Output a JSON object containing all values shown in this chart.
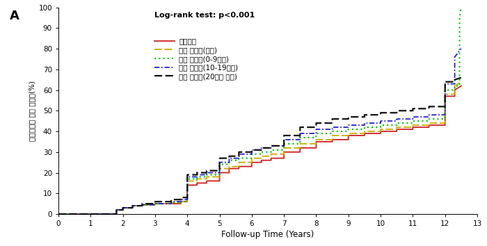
{
  "title_annotation": "Log-rank test: p<0.001",
  "xlabel": "Follow-up Time (Years)",
  "ylabel": "대사증후군 누적 발병률(%)",
  "panel_label": "A",
  "xlim": [
    0,
    13
  ],
  "ylim": [
    0,
    100
  ],
  "xticks": [
    0,
    1,
    2,
    3,
    4,
    5,
    6,
    7,
    8,
    9,
    10,
    11,
    12,
    13
  ],
  "yticks": [
    0,
    10,
    20,
    30,
    40,
    50,
    60,
    70,
    80,
    90,
    100
  ],
  "background_color": "#ffffff",
  "legend_text": [
    "비흡연자",
    "과거 흡연자(금연)",
    "현재 흡연자(0-9개비)",
    "현재 흡연자(10-19개비)",
    "현재 흡연자(20개비 이상)"
  ],
  "series": [
    {
      "label_idx": 0,
      "color": "#cc2222",
      "linestyle": "solid",
      "linewidth": 1.3,
      "x": [
        0,
        0,
        1.8,
        1.8,
        2.0,
        2.0,
        2.3,
        2.3,
        2.6,
        2.6,
        3.0,
        3.0,
        3.5,
        3.5,
        3.8,
        3.8,
        4.0,
        4.0,
        4.3,
        4.3,
        4.6,
        4.6,
        5.0,
        5.0,
        5.3,
        5.3,
        5.6,
        5.6,
        6.0,
        6.0,
        6.3,
        6.3,
        6.6,
        6.6,
        7.0,
        7.0,
        7.5,
        7.5,
        8.0,
        8.0,
        8.5,
        8.5,
        9.0,
        9.0,
        9.5,
        9.5,
        10.0,
        10.0,
        10.5,
        10.5,
        11.0,
        11.0,
        11.5,
        11.5,
        12.0,
        12.0,
        12.3,
        12.3,
        12.5
      ],
      "y": [
        0,
        0,
        0,
        2,
        2,
        3,
        3,
        4,
        4,
        4.5,
        4.5,
        5,
        5,
        5,
        5,
        6,
        6,
        14,
        14,
        15,
        15,
        16,
        16,
        20,
        20,
        22,
        22,
        23,
        23,
        25,
        25,
        26,
        26,
        27,
        27,
        30,
        30,
        32,
        32,
        35,
        35,
        36,
        36,
        38,
        38,
        39,
        39,
        40,
        40,
        41,
        41,
        42,
        42,
        43,
        43,
        57,
        57,
        60,
        62
      ]
    },
    {
      "label_idx": 1,
      "color": "#ccaa00",
      "linestyle": "dashed",
      "linewidth": 1.3,
      "dashes": [
        6,
        2
      ],
      "x": [
        0,
        0,
        1.8,
        1.8,
        2.0,
        2.0,
        2.3,
        2.3,
        2.6,
        2.6,
        3.0,
        3.0,
        3.5,
        3.5,
        3.8,
        3.8,
        4.0,
        4.0,
        4.3,
        4.3,
        4.6,
        4.6,
        5.0,
        5.0,
        5.3,
        5.3,
        5.6,
        5.6,
        6.0,
        6.0,
        6.3,
        6.3,
        6.6,
        6.6,
        7.0,
        7.0,
        7.5,
        7.5,
        8.0,
        8.0,
        8.5,
        8.5,
        9.0,
        9.0,
        9.5,
        9.5,
        10.0,
        10.0,
        10.5,
        10.5,
        11.0,
        11.0,
        11.5,
        11.5,
        12.0,
        12.0,
        12.3,
        12.3,
        12.5
      ],
      "y": [
        0,
        0,
        0,
        2,
        2,
        3,
        3,
        4,
        4,
        4.5,
        4.5,
        5,
        5,
        5.5,
        5.5,
        6,
        6,
        16,
        16,
        17,
        17,
        18,
        18,
        22,
        22,
        23,
        23,
        25,
        25,
        27,
        27,
        28,
        28,
        29,
        29,
        32,
        32,
        34,
        34,
        36,
        36,
        38,
        38,
        39,
        39,
        40,
        40,
        41,
        41,
        42,
        42,
        43,
        43,
        44,
        44,
        58,
        58,
        62,
        64
      ]
    },
    {
      "label_idx": 2,
      "color": "#00bb00",
      "linestyle": "dotted",
      "linewidth": 1.5,
      "dashes": [
        1,
        2
      ],
      "x": [
        0,
        0,
        1.8,
        1.8,
        2.0,
        2.0,
        2.3,
        2.3,
        2.6,
        2.6,
        3.0,
        3.0,
        3.5,
        3.5,
        3.8,
        3.8,
        4.0,
        4.0,
        4.3,
        4.3,
        4.6,
        4.6,
        5.0,
        5.0,
        5.3,
        5.3,
        5.6,
        5.6,
        6.0,
        6.0,
        6.3,
        6.3,
        6.6,
        6.6,
        7.0,
        7.0,
        7.5,
        7.5,
        8.0,
        8.0,
        8.5,
        8.5,
        9.0,
        9.0,
        9.5,
        9.5,
        10.0,
        10.0,
        10.5,
        10.5,
        11.0,
        11.0,
        11.5,
        11.5,
        12.0,
        12.0,
        12.3,
        12.3,
        12.45,
        12.45,
        12.5
      ],
      "y": [
        0,
        0,
        0,
        2,
        2,
        3,
        3,
        4,
        4,
        4.5,
        4.5,
        5,
        5,
        5.5,
        5.5,
        6,
        6,
        17,
        17,
        18,
        18,
        19,
        19,
        24,
        24,
        26,
        26,
        27,
        27,
        29,
        29,
        30,
        30,
        31,
        31,
        34,
        34,
        37,
        37,
        39,
        39,
        40,
        40,
        41,
        41,
        42,
        42,
        43,
        43,
        44,
        44,
        45,
        45,
        46,
        46,
        60,
        60,
        62,
        62,
        95,
        100
      ]
    },
    {
      "label_idx": 3,
      "color": "#2222cc",
      "linestyle": "dashdot",
      "linewidth": 1.3,
      "dashes": [
        4,
        1.5,
        1,
        1.5
      ],
      "x": [
        0,
        0,
        1.8,
        1.8,
        2.0,
        2.0,
        2.3,
        2.3,
        2.6,
        2.6,
        3.0,
        3.0,
        3.5,
        3.5,
        3.8,
        3.8,
        4.0,
        4.0,
        4.3,
        4.3,
        4.6,
        4.6,
        5.0,
        5.0,
        5.3,
        5.3,
        5.6,
        5.6,
        6.0,
        6.0,
        6.3,
        6.3,
        6.6,
        6.6,
        7.0,
        7.0,
        7.5,
        7.5,
        8.0,
        8.0,
        8.5,
        8.5,
        9.0,
        9.0,
        9.5,
        9.5,
        10.0,
        10.0,
        10.5,
        10.5,
        11.0,
        11.0,
        11.5,
        11.5,
        12.0,
        12.0,
        12.3,
        12.3,
        12.5
      ],
      "y": [
        0,
        0,
        0,
        2,
        2,
        3,
        3,
        4,
        4,
        4.5,
        4.5,
        5,
        5,
        6,
        6,
        7,
        7,
        18,
        18,
        19,
        19,
        20,
        20,
        25,
        25,
        27,
        27,
        29,
        29,
        31,
        31,
        32,
        32,
        33,
        33,
        36,
        36,
        39,
        39,
        41,
        41,
        42,
        42,
        43,
        43,
        44,
        44,
        45,
        45,
        46,
        46,
        47,
        47,
        48,
        48,
        63,
        63,
        76,
        80
      ]
    },
    {
      "label_idx": 4,
      "color": "#111111",
      "linestyle": "dashed",
      "linewidth": 1.6,
      "dashes": [
        5,
        2
      ],
      "x": [
        0,
        0,
        1.8,
        1.8,
        2.0,
        2.0,
        2.3,
        2.3,
        2.6,
        2.6,
        3.0,
        3.0,
        3.5,
        3.5,
        3.8,
        3.8,
        4.0,
        4.0,
        4.3,
        4.3,
        4.6,
        4.6,
        5.0,
        5.0,
        5.3,
        5.3,
        5.6,
        5.6,
        6.0,
        6.0,
        6.3,
        6.3,
        6.6,
        6.6,
        7.0,
        7.0,
        7.5,
        7.5,
        8.0,
        8.0,
        8.5,
        8.5,
        9.0,
        9.0,
        9.5,
        9.5,
        10.0,
        10.0,
        10.5,
        10.5,
        11.0,
        11.0,
        11.5,
        11.5,
        12.0,
        12.0,
        12.3,
        12.3,
        12.5
      ],
      "y": [
        0,
        0,
        0,
        2,
        2,
        3,
        3,
        4,
        4,
        5,
        5,
        6,
        6,
        7,
        7,
        8,
        8,
        19,
        19,
        20,
        20,
        21,
        21,
        27,
        27,
        28,
        28,
        30,
        30,
        31,
        31,
        32,
        32,
        33,
        33,
        38,
        38,
        42,
        42,
        44,
        44,
        46,
        46,
        47,
        47,
        48,
        48,
        49,
        49,
        50,
        50,
        51,
        51,
        52,
        52,
        64,
        64,
        65,
        66
      ]
    }
  ]
}
